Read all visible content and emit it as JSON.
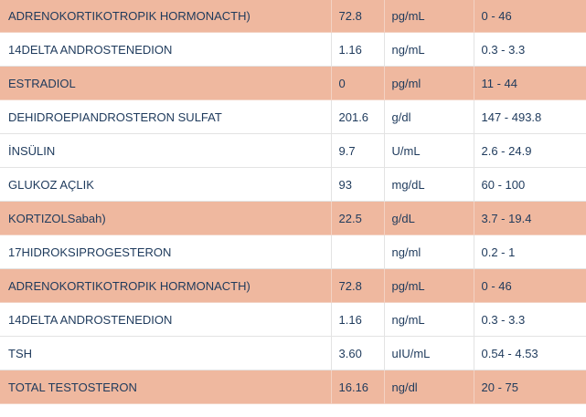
{
  "table": {
    "rows": [
      [
        "ADRENOKORTIKOTROPIK HORMONACTH)",
        "72.8",
        "pg/mL",
        "0 - 46"
      ],
      [
        "14DELTA ANDROSTENEDION",
        "1.16",
        "ng/mL",
        "0.3 - 3.3"
      ],
      [
        "ESTRADIOL",
        "0",
        "pg/ml",
        "11 - 44"
      ],
      [
        "DEHIDROEPIANDROSTERON SULFAT",
        "201.6",
        "g/dl",
        "147 - 493.8"
      ],
      [
        "İNSÜLIN",
        "9.7",
        "U/mL",
        "2.6 - 24.9"
      ],
      [
        "GLUKOZ AÇLIK",
        "93",
        "mg/dL",
        "60 - 100"
      ],
      [
        "KORTIZOLSabah)",
        "22.5",
        "g/dL",
        "3.7 - 19.4"
      ],
      [
        "17HIDROKSIPROGESTERON",
        null,
        "ng/ml",
        "0.2 - 1"
      ],
      [
        "ADRENOKORTIKOTROPIK HORMONACTH)",
        "72.8",
        "pg/mL",
        "0 - 46"
      ],
      [
        "14DELTA ANDROSTENEDION",
        "1.16",
        "ng/mL",
        "0.3 - 3.3"
      ],
      [
        "TSH",
        "3.60",
        "uIU/mL",
        "0.54 - 4.53"
      ],
      [
        "TOTAL TESTOSTERON",
        "16.16",
        "ng/dl",
        "20 - 75"
      ]
    ]
  }
}
